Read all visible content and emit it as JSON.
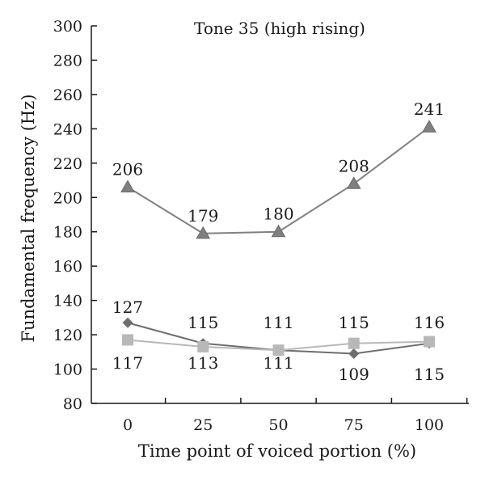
{
  "chart_data": {
    "type": "line",
    "title": "Tone 35 (high rising)",
    "xlabel": "Time point of voiced portion (%)",
    "ylabel": "Fundamental frequency (Hz)",
    "x": [
      0,
      25,
      50,
      75,
      100
    ],
    "x_tick_labels": [
      "0",
      "25",
      "50",
      "75",
      "100"
    ],
    "y_tick_labels": [
      "80",
      "100",
      "120",
      "140",
      "160",
      "180",
      "200",
      "220",
      "240",
      "260",
      "280",
      "300"
    ],
    "ylim": [
      80,
      300
    ],
    "grid": false,
    "legend": "none",
    "series": [
      {
        "marker": "triangle",
        "color": "#808080",
        "values": [
          206,
          179,
          180,
          208,
          241
        ],
        "labels": [
          "206",
          "179",
          "180",
          "208",
          "241"
        ],
        "label_position": "above"
      },
      {
        "marker": "diamond",
        "color": "#6e6e6e",
        "values": [
          127,
          115,
          111,
          109,
          115
        ],
        "labels": [
          "127",
          "115",
          "111",
          "109",
          "115"
        ],
        "label_position": [
          "above",
          "above",
          "above",
          "below",
          "below"
        ]
      },
      {
        "marker": "square",
        "color": "#b8b8b8",
        "values": [
          117,
          113,
          111,
          115,
          116
        ],
        "labels": [
          "117",
          "113",
          "111",
          "115",
          "116"
        ],
        "label_position": [
          "below",
          "below",
          "below",
          "above",
          "above"
        ]
      }
    ]
  }
}
